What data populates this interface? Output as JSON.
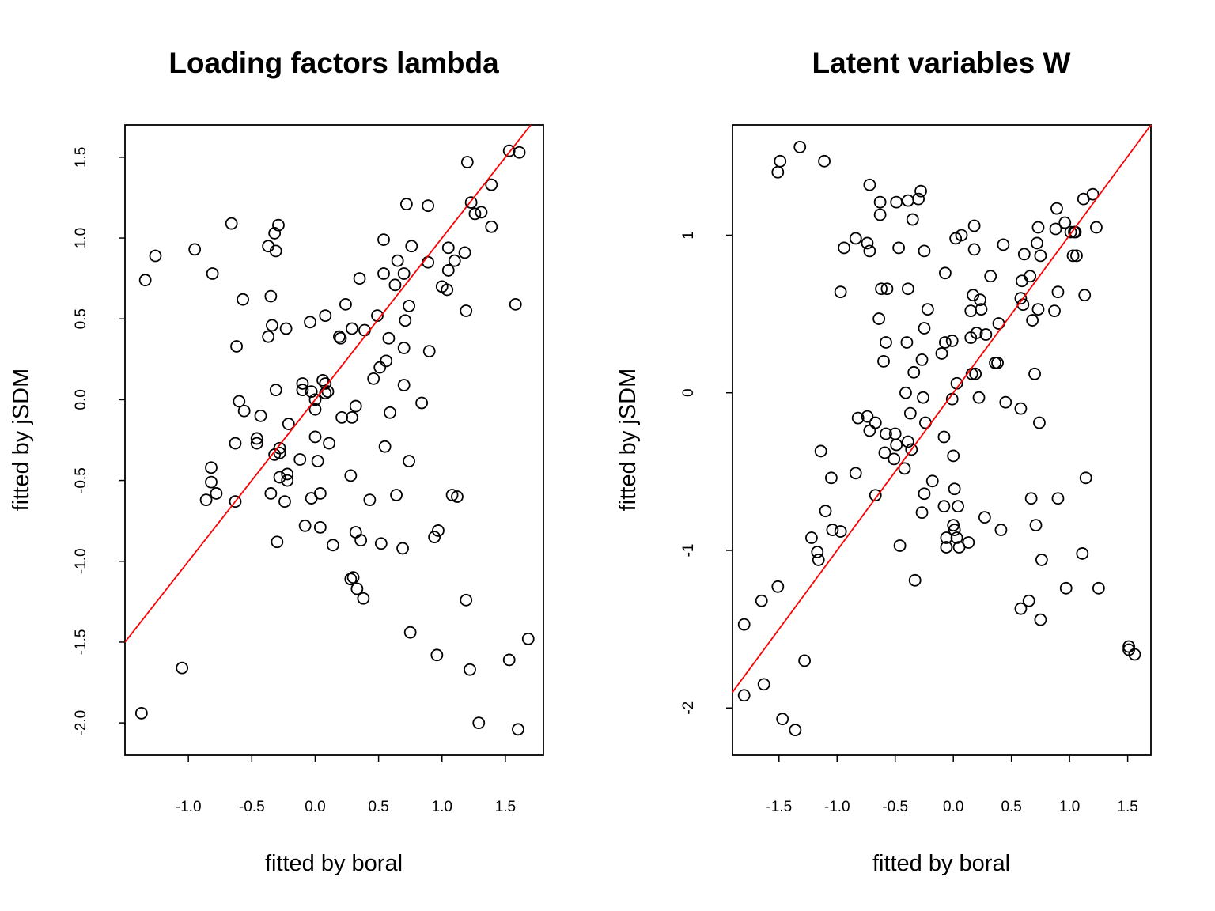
{
  "chart_data": [
    {
      "type": "scatter",
      "title": "Loading factors lambda",
      "xlabel": "fitted by boral",
      "ylabel": "fitted by jSDM",
      "xlim": [
        -1.5,
        1.8
      ],
      "ylim": [
        -2.2,
        1.7
      ],
      "xticks": [
        "-1.0",
        "-0.5",
        "0.0",
        "0.5",
        "1.0",
        "1.5"
      ],
      "yticks": [
        "-2.0",
        "-1.5",
        "-1.0",
        "-0.5",
        "0.0",
        "0.5",
        "1.0",
        "1.5"
      ],
      "reference_line": {
        "slope": 1,
        "intercept": 0,
        "color": "#ff0000"
      },
      "points": [
        [
          -1.37,
          -1.94
        ],
        [
          -1.05,
          -1.66
        ],
        [
          -1.34,
          0.74
        ],
        [
          -1.26,
          0.89
        ],
        [
          -0.95,
          0.93
        ],
        [
          -0.81,
          0.78
        ],
        [
          -0.66,
          1.09
        ],
        [
          -0.29,
          1.08
        ],
        [
          -0.32,
          1.03
        ],
        [
          -0.31,
          0.92
        ],
        [
          -0.37,
          0.95
        ],
        [
          -0.57,
          0.62
        ],
        [
          -0.35,
          0.64
        ],
        [
          -0.34,
          0.46
        ],
        [
          -0.37,
          0.39
        ],
        [
          -0.23,
          0.44
        ],
        [
          -0.62,
          0.33
        ],
        [
          -0.6,
          -0.01
        ],
        [
          -0.56,
          -0.07
        ],
        [
          -0.43,
          -0.1
        ],
        [
          -0.31,
          0.06
        ],
        [
          -0.46,
          -0.24
        ],
        [
          -0.46,
          -0.27
        ],
        [
          -0.63,
          -0.27
        ],
        [
          -0.21,
          -0.15
        ],
        [
          -0.28,
          -0.3
        ],
        [
          -0.32,
          -0.34
        ],
        [
          -0.28,
          -0.33
        ],
        [
          -0.82,
          -0.42
        ],
        [
          -0.82,
          -0.51
        ],
        [
          -0.86,
          -0.62
        ],
        [
          -0.78,
          -0.58
        ],
        [
          -0.63,
          -0.63
        ],
        [
          -0.35,
          -0.58
        ],
        [
          -0.28,
          -0.48
        ],
        [
          -0.22,
          -0.46
        ],
        [
          -0.22,
          -0.5
        ],
        [
          -0.24,
          -0.63
        ],
        [
          -0.3,
          -0.88
        ],
        [
          -0.08,
          -0.78
        ],
        [
          -0.12,
          -0.37
        ],
        [
          -0.1,
          0.1
        ],
        [
          -0.1,
          0.06
        ],
        [
          -0.04,
          0.48
        ],
        [
          -0.03,
          0.05
        ],
        [
          0.0,
          0.0
        ],
        [
          0.0,
          -0.06
        ],
        [
          0.0,
          -0.23
        ],
        [
          0.02,
          -0.38
        ],
        [
          -0.03,
          -0.61
        ],
        [
          0.04,
          -0.58
        ],
        [
          0.04,
          -0.79
        ],
        [
          0.06,
          0.12
        ],
        [
          0.08,
          0.1
        ],
        [
          0.08,
          0.04
        ],
        [
          0.1,
          0.05
        ],
        [
          0.08,
          0.52
        ],
        [
          0.11,
          -0.27
        ],
        [
          0.14,
          -0.9
        ],
        [
          0.19,
          0.39
        ],
        [
          0.2,
          0.38
        ],
        [
          0.21,
          -0.11
        ],
        [
          0.24,
          0.59
        ],
        [
          0.29,
          0.44
        ],
        [
          0.29,
          -0.11
        ],
        [
          0.32,
          -0.04
        ],
        [
          0.35,
          0.75
        ],
        [
          0.39,
          0.43
        ],
        [
          0.28,
          -0.47
        ],
        [
          0.43,
          -0.62
        ],
        [
          0.32,
          -0.82
        ],
        [
          0.36,
          -0.87
        ],
        [
          0.28,
          -1.11
        ],
        [
          0.3,
          -1.1
        ],
        [
          0.33,
          -1.17
        ],
        [
          0.38,
          -1.23
        ],
        [
          0.46,
          0.13
        ],
        [
          0.49,
          0.52
        ],
        [
          0.51,
          0.2
        ],
        [
          0.54,
          0.99
        ],
        [
          0.54,
          0.78
        ],
        [
          0.56,
          0.24
        ],
        [
          0.58,
          0.38
        ],
        [
          0.59,
          -0.08
        ],
        [
          0.55,
          -0.29
        ],
        [
          0.52,
          -0.89
        ],
        [
          0.63,
          0.71
        ],
        [
          0.65,
          0.86
        ],
        [
          0.64,
          -0.59
        ],
        [
          0.7,
          0.78
        ],
        [
          0.72,
          1.21
        ],
        [
          0.7,
          0.32
        ],
        [
          0.71,
          0.49
        ],
        [
          0.74,
          0.58
        ],
        [
          0.76,
          0.95
        ],
        [
          0.7,
          0.09
        ],
        [
          0.74,
          -0.38
        ],
        [
          0.69,
          -0.92
        ],
        [
          0.75,
          -1.44
        ],
        [
          0.84,
          -0.02
        ],
        [
          0.89,
          0.85
        ],
        [
          0.89,
          1.2
        ],
        [
          0.9,
          0.3
        ],
        [
          0.94,
          -0.85
        ],
        [
          0.97,
          -0.81
        ],
        [
          0.96,
          -1.58
        ],
        [
          1.0,
          0.7
        ],
        [
          1.04,
          0.68
        ],
        [
          1.05,
          0.8
        ],
        [
          1.05,
          0.94
        ],
        [
          1.1,
          0.86
        ],
        [
          1.08,
          -0.59
        ],
        [
          1.12,
          -0.6
        ],
        [
          1.18,
          0.91
        ],
        [
          1.19,
          0.55
        ],
        [
          1.2,
          1.47
        ],
        [
          1.23,
          1.22
        ],
        [
          1.26,
          1.15
        ],
        [
          1.31,
          1.16
        ],
        [
          1.39,
          1.33
        ],
        [
          1.39,
          1.07
        ],
        [
          1.19,
          -1.24
        ],
        [
          1.22,
          -1.67
        ],
        [
          1.29,
          -2.0
        ],
        [
          1.53,
          1.54
        ],
        [
          1.61,
          1.53
        ],
        [
          1.58,
          0.59
        ],
        [
          1.53,
          -1.61
        ],
        [
          1.6,
          -2.04
        ],
        [
          1.68,
          -1.48
        ]
      ]
    },
    {
      "type": "scatter",
      "title": "Latent variables W",
      "xlabel": "fitted by boral",
      "ylabel": "fitted by jSDM",
      "xlim": [
        -1.9,
        1.7
      ],
      "ylim": [
        -2.3,
        1.7
      ],
      "xticks": [
        "-1.5",
        "-1.0",
        "-0.5",
        "0.0",
        "0.5",
        "1.0",
        "1.5"
      ],
      "yticks": [
        "-2",
        "-1",
        "0",
        "1"
      ],
      "reference_line": {
        "slope": 1,
        "intercept": 0,
        "color": "#ff0000"
      },
      "points": [
        [
          -1.51,
          1.4
        ],
        [
          -1.49,
          1.47
        ],
        [
          -1.32,
          1.56
        ],
        [
          -1.11,
          1.47
        ],
        [
          -1.8,
          -1.47
        ],
        [
          -1.8,
          -1.92
        ],
        [
          -1.65,
          -1.32
        ],
        [
          -1.63,
          -1.85
        ],
        [
          -1.51,
          -1.23
        ],
        [
          -1.47,
          -2.07
        ],
        [
          -1.36,
          -2.14
        ],
        [
          -1.28,
          -1.7
        ],
        [
          -1.22,
          -0.92
        ],
        [
          -1.17,
          -1.01
        ],
        [
          -1.16,
          -1.06
        ],
        [
          -1.14,
          -0.37
        ],
        [
          -1.1,
          -0.75
        ],
        [
          -1.05,
          -0.54
        ],
        [
          -1.04,
          -0.87
        ],
        [
          -0.97,
          -0.88
        ],
        [
          -0.97,
          0.64
        ],
        [
          -0.94,
          0.92
        ],
        [
          -0.84,
          0.98
        ],
        [
          -0.84,
          -0.51
        ],
        [
          -0.82,
          -0.16
        ],
        [
          -0.74,
          0.95
        ],
        [
          -0.74,
          -0.15
        ],
        [
          -0.72,
          1.32
        ],
        [
          -0.72,
          0.9
        ],
        [
          -0.72,
          -0.24
        ],
        [
          -0.67,
          -0.19
        ],
        [
          -0.67,
          -0.65
        ],
        [
          -0.64,
          0.47
        ],
        [
          -0.63,
          1.21
        ],
        [
          -0.63,
          1.13
        ],
        [
          -0.62,
          0.66
        ],
        [
          -0.6,
          0.2
        ],
        [
          -0.59,
          -0.38
        ],
        [
          -0.58,
          0.32
        ],
        [
          -0.57,
          0.66
        ],
        [
          -0.58,
          -0.26
        ],
        [
          -0.51,
          -0.42
        ],
        [
          -0.5,
          -0.26
        ],
        [
          -0.49,
          -0.33
        ],
        [
          -0.49,
          1.21
        ],
        [
          -0.47,
          0.92
        ],
        [
          -0.46,
          -0.97
        ],
        [
          -0.42,
          -0.48
        ],
        [
          -0.41,
          0.0
        ],
        [
          -0.4,
          0.32
        ],
        [
          -0.39,
          -0.31
        ],
        [
          -0.39,
          0.66
        ],
        [
          -0.39,
          1.22
        ],
        [
          -0.37,
          -0.13
        ],
        [
          -0.36,
          -0.36
        ],
        [
          -0.35,
          1.1
        ],
        [
          -0.34,
          0.13
        ],
        [
          -0.33,
          -1.19
        ],
        [
          -0.3,
          1.23
        ],
        [
          -0.28,
          1.28
        ],
        [
          -0.27,
          0.21
        ],
        [
          -0.26,
          -0.03
        ],
        [
          -0.25,
          0.41
        ],
        [
          -0.25,
          0.9
        ],
        [
          -0.24,
          -0.19
        ],
        [
          -0.25,
          -0.64
        ],
        [
          -0.27,
          -0.76
        ],
        [
          -0.22,
          0.53
        ],
        [
          -0.18,
          -0.56
        ],
        [
          -0.1,
          0.25
        ],
        [
          -0.08,
          -0.28
        ],
        [
          -0.07,
          0.32
        ],
        [
          -0.07,
          0.76
        ],
        [
          -0.08,
          -0.72
        ],
        [
          -0.06,
          -0.92
        ],
        [
          -0.06,
          -0.98
        ],
        [
          -0.01,
          -0.04
        ],
        [
          -0.01,
          0.33
        ],
        [
          0.0,
          -0.4
        ],
        [
          0.0,
          -0.84
        ],
        [
          0.01,
          -0.87
        ],
        [
          0.01,
          -0.61
        ],
        [
          0.02,
          0.98
        ],
        [
          0.03,
          -0.92
        ],
        [
          0.04,
          -0.72
        ],
        [
          0.05,
          -0.98
        ],
        [
          0.07,
          1.0
        ],
        [
          0.03,
          0.06
        ],
        [
          0.13,
          -0.95
        ],
        [
          0.15,
          0.35
        ],
        [
          0.15,
          0.52
        ],
        [
          0.16,
          0.12
        ],
        [
          0.17,
          0.62
        ],
        [
          0.18,
          1.06
        ],
        [
          0.18,
          0.91
        ],
        [
          0.19,
          0.12
        ],
        [
          0.2,
          0.38
        ],
        [
          0.22,
          -0.03
        ],
        [
          0.23,
          0.59
        ],
        [
          0.24,
          0.53
        ],
        [
          0.27,
          -0.79
        ],
        [
          0.28,
          0.37
        ],
        [
          0.32,
          0.74
        ],
        [
          0.36,
          0.19
        ],
        [
          0.38,
          0.19
        ],
        [
          0.39,
          0.44
        ],
        [
          0.41,
          -0.87
        ],
        [
          0.43,
          0.94
        ],
        [
          0.45,
          -0.06
        ],
        [
          0.58,
          0.6
        ],
        [
          0.58,
          -0.1
        ],
        [
          0.59,
          0.71
        ],
        [
          0.61,
          0.88
        ],
        [
          0.6,
          0.56
        ],
        [
          0.58,
          -1.37
        ],
        [
          0.65,
          -1.32
        ],
        [
          0.66,
          0.74
        ],
        [
          0.67,
          -0.67
        ],
        [
          0.68,
          0.46
        ],
        [
          0.7,
          0.12
        ],
        [
          0.71,
          -0.84
        ],
        [
          0.72,
          0.95
        ],
        [
          0.73,
          1.05
        ],
        [
          0.73,
          0.53
        ],
        [
          0.74,
          -0.19
        ],
        [
          0.75,
          0.87
        ],
        [
          0.76,
          -1.06
        ],
        [
          0.75,
          -1.44
        ],
        [
          0.87,
          0.52
        ],
        [
          0.88,
          1.04
        ],
        [
          0.89,
          1.17
        ],
        [
          0.9,
          0.64
        ],
        [
          0.9,
          -0.67
        ],
        [
          0.96,
          1.08
        ],
        [
          0.97,
          -1.24
        ],
        [
          1.01,
          1.02
        ],
        [
          1.03,
          0.87
        ],
        [
          1.04,
          1.02
        ],
        [
          1.05,
          1.02
        ],
        [
          1.06,
          0.87
        ],
        [
          1.11,
          -1.02
        ],
        [
          1.12,
          1.23
        ],
        [
          1.13,
          0.62
        ],
        [
          1.14,
          -0.54
        ],
        [
          1.2,
          1.26
        ],
        [
          1.23,
          1.05
        ],
        [
          1.25,
          -1.24
        ],
        [
          1.51,
          -1.61
        ],
        [
          1.51,
          -1.63
        ],
        [
          1.56,
          -1.66
        ]
      ]
    }
  ]
}
